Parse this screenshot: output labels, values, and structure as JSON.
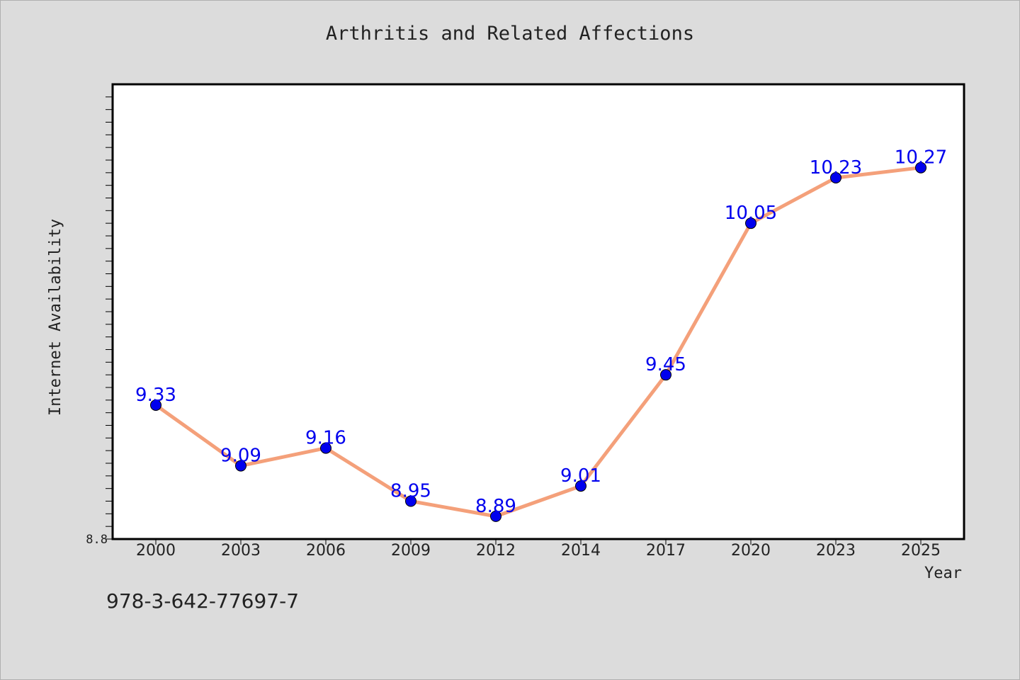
{
  "chart_data": {
    "type": "line",
    "title": "Arthritis and Related Affections",
    "xlabel": "Year",
    "ylabel": "Internet Availability",
    "categories": [
      "2000",
      "2003",
      "2006",
      "2009",
      "2012",
      "2014",
      "2017",
      "2020",
      "2023",
      "2025"
    ],
    "series": [
      {
        "values": [
          9.33,
          9.09,
          9.16,
          8.95,
          8.89,
          9.01,
          9.45,
          10.05,
          10.23,
          10.27
        ],
        "line_color": "#f4a07a",
        "marker_color": "#0000ee"
      }
    ],
    "data_labels": [
      "9.33",
      "9.09",
      "9.16",
      "8.95",
      "8.89",
      "9.01",
      "9.45",
      "10.05",
      "10.23",
      "10.27"
    ],
    "ylim": [
      8.8,
      10.6
    ],
    "y_tick_labels": [
      "8.8"
    ],
    "grid": false,
    "label_color": "#0000ee"
  },
  "footer_code": "978-3-642-77697-7"
}
